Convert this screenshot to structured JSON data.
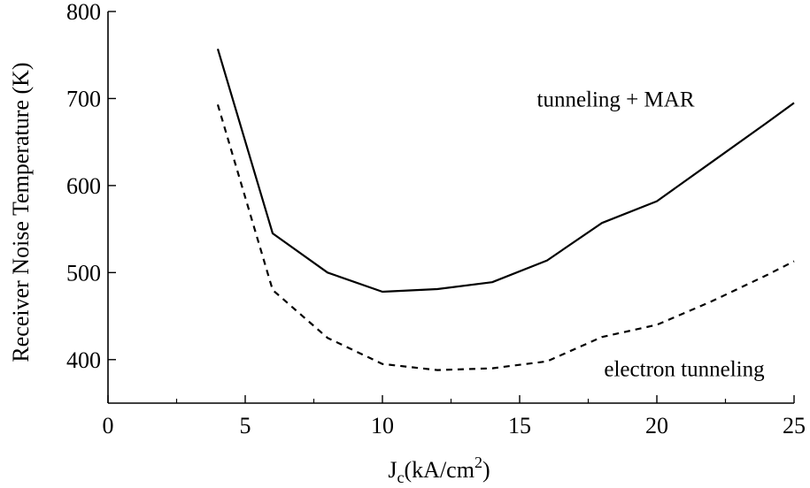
{
  "chart_data": {
    "type": "line",
    "title": "",
    "xlabel": "J",
    "xlabel_sub": "c",
    "xlabel_unit": "(kA/cm",
    "xlabel_sup": "2",
    "xlabel_close": ")",
    "ylabel": "Receiver Noise Temperature (K)",
    "xlim": [
      0,
      25
    ],
    "ylim": [
      350,
      800
    ],
    "x_ticks": [
      0,
      5,
      10,
      15,
      20,
      25
    ],
    "x_minor_step": 2.5,
    "y_ticks": [
      400,
      500,
      600,
      700,
      800
    ],
    "grid": false,
    "legend": "none",
    "series": [
      {
        "name": "tunneling + MAR",
        "style": "solid",
        "color": "#000000",
        "x": [
          4,
          6,
          8,
          10,
          12,
          14,
          16,
          18,
          20,
          22,
          24,
          25
        ],
        "y": [
          757,
          545,
          500,
          478,
          481,
          489,
          514,
          557,
          582,
          627,
          672,
          695
        ]
      },
      {
        "name": "electron tunneling",
        "style": "dashed",
        "color": "#000000",
        "x": [
          4,
          6,
          8,
          10,
          12,
          14,
          16,
          18,
          20,
          22,
          24,
          25
        ],
        "y": [
          693,
          480,
          425,
          395,
          388,
          390,
          398,
          426,
          440,
          467,
          497,
          513
        ]
      }
    ],
    "annotations": [
      {
        "text": "tunneling + MAR",
        "x": 18.5,
        "y": 700
      },
      {
        "text": "electron tunneling",
        "x": 21,
        "y": 390
      }
    ]
  }
}
